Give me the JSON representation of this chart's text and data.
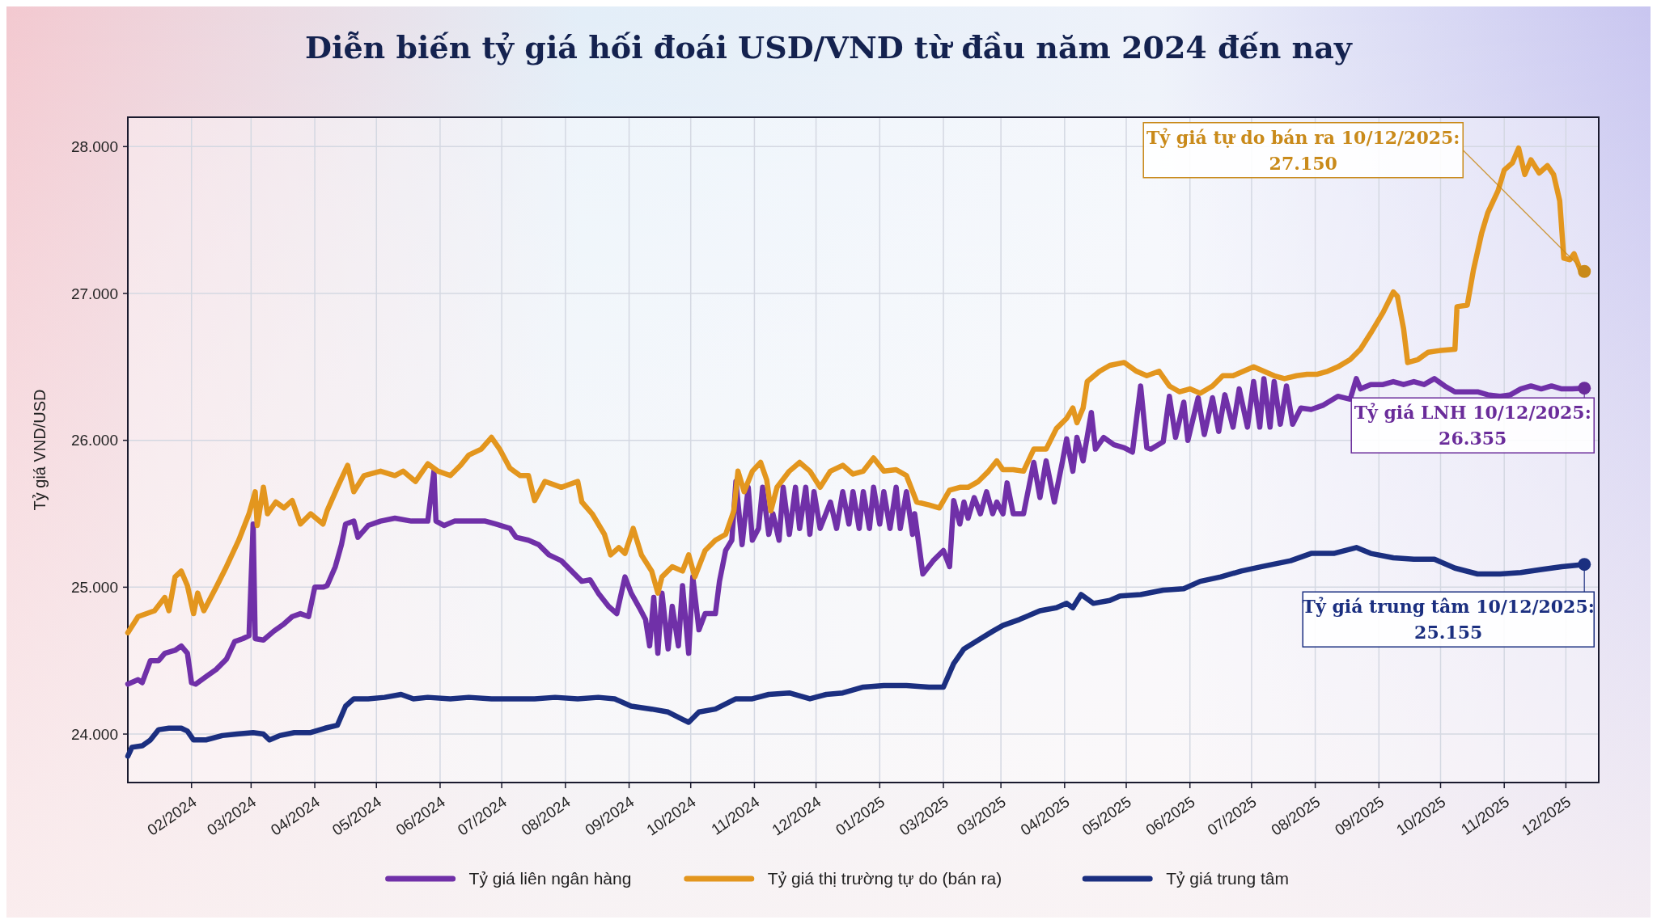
{
  "chart_data": {
    "type": "line",
    "title": "Diễn biến tỷ giá hối đoái USD/VND từ đầu năm 2024 đến nay",
    "ylabel": "Tỷ giá VND/USD",
    "xlim": [
      "2024-01-01",
      "2025-12-17"
    ],
    "xticks": [
      {
        "value": "2024-02-01",
        "label": "02/2024"
      },
      {
        "value": "2024-03-01",
        "label": "03/2024"
      },
      {
        "value": "2024-04-01",
        "label": "04/2024"
      },
      {
        "value": "2024-05-01",
        "label": "05/2024"
      },
      {
        "value": "2024-06-01",
        "label": "06/2024"
      },
      {
        "value": "2024-07-01",
        "label": "07/2024"
      },
      {
        "value": "2024-08-01",
        "label": "08/2024"
      },
      {
        "value": "2024-09-01",
        "label": "09/2024"
      },
      {
        "value": "2024-10-01",
        "label": "10/2024"
      },
      {
        "value": "2024-11-01",
        "label": "11/2024"
      },
      {
        "value": "2024-12-01",
        "label": "12/2024"
      },
      {
        "value": "2025-01-01",
        "label": "01/2025"
      },
      {
        "value": "2025-02-01",
        "label": "03/2025"
      },
      {
        "value": "2025-03-01",
        "label": "03/2025"
      },
      {
        "value": "2025-04-01",
        "label": "04/2025"
      },
      {
        "value": "2025-05-01",
        "label": "05/2025"
      },
      {
        "value": "2025-06-01",
        "label": "06/2025"
      },
      {
        "value": "2025-07-01",
        "label": "07/2025"
      },
      {
        "value": "2025-08-01",
        "label": "08/2025"
      },
      {
        "value": "2025-09-01",
        "label": "09/2025"
      },
      {
        "value": "2025-10-01",
        "label": "10/2025"
      },
      {
        "value": "2025-11-01",
        "label": "11/2025"
      },
      {
        "value": "2025-12-01",
        "label": "12/2025"
      }
    ],
    "ylim": [
      23670,
      28200
    ],
    "yticks": [
      {
        "value": 24000,
        "label": "24.000"
      },
      {
        "value": 25000,
        "label": "25.000"
      },
      {
        "value": 26000,
        "label": "26.000"
      },
      {
        "value": 27000,
        "label": "27.000"
      },
      {
        "value": 28000,
        "label": "28.000"
      }
    ],
    "grid": true,
    "legend": "bottom",
    "series": [
      {
        "name": "Tỷ giá liên ngân hàng",
        "color": "#7030a8",
        "x": [
          "2024-01-01",
          "2024-01-06",
          "2024-01-08",
          "2024-01-12",
          "2024-01-16",
          "2024-01-19",
          "2024-01-24",
          "2024-01-27",
          "2024-01-30",
          "2024-02-01",
          "2024-02-03",
          "2024-02-08",
          "2024-02-13",
          "2024-02-18",
          "2024-02-22",
          "2024-02-26",
          "2024-02-29",
          "2024-03-02",
          "2024-03-03",
          "2024-03-07",
          "2024-03-12",
          "2024-03-17",
          "2024-03-21",
          "2024-03-25",
          "2024-03-29",
          "2024-04-01",
          "2024-04-05",
          "2024-04-07",
          "2024-04-11",
          "2024-04-14",
          "2024-04-16",
          "2024-04-20",
          "2024-04-22",
          "2024-04-27",
          "2024-05-03",
          "2024-05-10",
          "2024-05-18",
          "2024-05-26",
          "2024-05-29",
          "2024-05-30",
          "2024-06-03",
          "2024-06-08",
          "2024-06-15",
          "2024-06-23",
          "2024-06-28",
          "2024-07-05",
          "2024-07-08",
          "2024-07-14",
          "2024-07-19",
          "2024-07-24",
          "2024-07-30",
          "2024-08-04",
          "2024-08-09",
          "2024-08-13",
          "2024-08-17",
          "2024-08-22",
          "2024-08-26",
          "2024-08-30",
          "2024-09-02",
          "2024-09-06",
          "2024-09-09",
          "2024-09-11",
          "2024-09-13",
          "2024-09-15",
          "2024-09-17",
          "2024-09-20",
          "2024-09-22",
          "2024-09-25",
          "2024-09-27",
          "2024-09-30",
          "2024-10-02",
          "2024-10-05",
          "2024-10-08",
          "2024-10-13",
          "2024-10-15",
          "2024-10-18",
          "2024-10-21",
          "2024-10-23",
          "2024-10-26",
          "2024-10-29",
          "2024-10-31",
          "2024-11-03",
          "2024-11-05",
          "2024-11-08",
          "2024-11-10",
          "2024-11-13",
          "2024-11-15",
          "2024-11-18",
          "2024-11-21",
          "2024-11-23",
          "2024-11-26",
          "2024-11-28",
          "2024-11-30",
          "2024-12-03",
          "2024-12-08",
          "2024-12-11",
          "2024-12-14",
          "2024-12-17",
          "2024-12-19",
          "2024-12-22",
          "2024-12-24",
          "2024-12-27",
          "2024-12-29",
          "2025-01-01",
          "2025-01-03",
          "2025-01-06",
          "2025-01-09",
          "2025-01-11",
          "2025-01-14",
          "2025-01-17",
          "2025-01-18",
          "2025-01-22",
          "2025-01-27",
          "2025-02-01",
          "2025-02-04",
          "2025-02-06",
          "2025-02-09",
          "2025-02-11",
          "2025-02-13",
          "2025-02-16",
          "2025-02-19",
          "2025-02-22",
          "2025-02-25",
          "2025-02-27",
          "2025-03-02",
          "2025-03-04",
          "2025-03-07",
          "2025-03-12",
          "2025-03-17",
          "2025-03-20",
          "2025-03-23",
          "2025-03-27",
          "2025-03-31",
          "2025-04-02",
          "2025-04-05",
          "2025-04-07",
          "2025-04-10",
          "2025-04-14",
          "2025-04-16",
          "2025-04-20",
          "2025-04-25",
          "2025-04-30",
          "2025-05-04",
          "2025-05-08",
          "2025-05-11",
          "2025-05-13",
          "2025-05-19",
          "2025-05-22",
          "2025-05-25",
          "2025-05-29",
          "2025-05-31",
          "2025-06-05",
          "2025-06-08",
          "2025-06-12",
          "2025-06-15",
          "2025-06-18",
          "2025-06-22",
          "2025-06-25",
          "2025-06-29",
          "2025-07-02",
          "2025-07-05",
          "2025-07-07",
          "2025-07-10",
          "2025-07-12",
          "2025-07-15",
          "2025-07-18",
          "2025-07-21",
          "2025-07-25",
          "2025-07-30",
          "2025-08-05",
          "2025-08-12",
          "2025-08-18",
          "2025-08-21",
          "2025-08-23",
          "2025-08-28",
          "2025-09-03",
          "2025-09-08",
          "2025-09-13",
          "2025-09-18",
          "2025-09-23",
          "2025-09-28",
          "2025-10-03",
          "2025-10-08",
          "2025-10-14",
          "2025-10-19",
          "2025-10-24",
          "2025-10-30",
          "2025-11-04",
          "2025-11-09",
          "2025-11-14",
          "2025-11-19",
          "2025-11-24",
          "2025-11-29",
          "2025-12-04",
          "2025-12-10"
        ],
        "values": [
          24340,
          24370,
          24350,
          24500,
          24500,
          24550,
          24570,
          24600,
          24550,
          24350,
          24340,
          24390,
          24440,
          24510,
          24630,
          24650,
          24670,
          25430,
          24650,
          24640,
          24700,
          24750,
          24800,
          24820,
          24800,
          25000,
          25000,
          25010,
          25140,
          25290,
          25430,
          25450,
          25340,
          25420,
          25450,
          25470,
          25450,
          25450,
          25790,
          25450,
          25420,
          25450,
          25450,
          25450,
          25430,
          25400,
          25340,
          25320,
          25290,
          25220,
          25180,
          25110,
          25040,
          25050,
          24960,
          24870,
          24820,
          25070,
          24960,
          24860,
          24780,
          24600,
          24930,
          24550,
          24960,
          24580,
          24870,
          24600,
          25010,
          24550,
          25070,
          24710,
          24820,
          24820,
          25040,
          25250,
          25320,
          25720,
          25290,
          25680,
          25320,
          25400,
          25680,
          25360,
          25500,
          25320,
          25680,
          25360,
          25680,
          25400,
          25680,
          25360,
          25650,
          25400,
          25580,
          25400,
          25650,
          25430,
          25650,
          25400,
          25650,
          25400,
          25680,
          25430,
          25650,
          25400,
          25680,
          25400,
          25650,
          25360,
          25500,
          25090,
          25180,
          25250,
          25140,
          25590,
          25430,
          25580,
          25470,
          25610,
          25500,
          25650,
          25500,
          25580,
          25500,
          25710,
          25500,
          25500,
          25850,
          25610,
          25860,
          25580,
          25860,
          26010,
          25790,
          26020,
          25860,
          26190,
          25940,
          26020,
          25970,
          25950,
          25920,
          26370,
          25950,
          25940,
          25990,
          26300,
          26020,
          26260,
          26000,
          26290,
          26040,
          26290,
          26060,
          26310,
          26090,
          26350,
          26090,
          26400,
          26090,
          26420,
          26090,
          26400,
          26110,
          26370,
          26110,
          26220,
          26210,
          26240,
          26300,
          26280,
          26420,
          26350,
          26380,
          26380,
          26400,
          26380,
          26400,
          26380,
          26420,
          26370,
          26330,
          26330,
          26330,
          26310,
          26300,
          26310,
          26350,
          26370,
          26350,
          26370,
          26350,
          26350,
          26355
        ]
      },
      {
        "name": "Tỷ giá thị trường tự do (bán ra)",
        "color": "#e3961e",
        "x": [
          "2024-01-01",
          "2024-01-06",
          "2024-01-14",
          "2024-01-19",
          "2024-01-21",
          "2024-01-24",
          "2024-01-27",
          "2024-01-30",
          "2024-02-02",
          "2024-02-04",
          "2024-02-07",
          "2024-02-13",
          "2024-02-18",
          "2024-02-24",
          "2024-02-29",
          "2024-03-03",
          "2024-03-04",
          "2024-03-07",
          "2024-03-09",
          "2024-03-13",
          "2024-03-17",
          "2024-03-21",
          "2024-03-25",
          "2024-03-30",
          "2024-04-05",
          "2024-04-07",
          "2024-04-12",
          "2024-04-17",
          "2024-04-20",
          "2024-04-25",
          "2024-05-03",
          "2024-05-10",
          "2024-05-14",
          "2024-05-20",
          "2024-05-26",
          "2024-05-31",
          "2024-06-06",
          "2024-06-11",
          "2024-06-15",
          "2024-06-21",
          "2024-06-26",
          "2024-06-30",
          "2024-07-05",
          "2024-07-10",
          "2024-07-14",
          "2024-07-17",
          "2024-07-22",
          "2024-07-30",
          "2024-08-07",
          "2024-08-09",
          "2024-08-14",
          "2024-08-20",
          "2024-08-23",
          "2024-08-27",
          "2024-08-30",
          "2024-09-03",
          "2024-09-07",
          "2024-09-12",
          "2024-09-15",
          "2024-09-17",
          "2024-09-22",
          "2024-09-27",
          "2024-09-30",
          "2024-10-03",
          "2024-10-08",
          "2024-10-13",
          "2024-10-18",
          "2024-10-22",
          "2024-10-24",
          "2024-10-27",
          "2024-10-31",
          "2024-11-04",
          "2024-11-07",
          "2024-11-09",
          "2024-11-12",
          "2024-11-18",
          "2024-11-23",
          "2024-11-28",
          "2024-12-03",
          "2024-12-08",
          "2024-12-14",
          "2024-12-19",
          "2024-12-24",
          "2024-12-29",
          "2025-01-03",
          "2025-01-09",
          "2025-01-14",
          "2025-01-19",
          "2025-01-25",
          "2025-01-30",
          "2025-02-04",
          "2025-02-09",
          "2025-02-13",
          "2025-02-18",
          "2025-02-23",
          "2025-02-27",
          "2025-03-02",
          "2025-03-07",
          "2025-03-12",
          "2025-03-17",
          "2025-03-23",
          "2025-03-28",
          "2025-04-02",
          "2025-04-05",
          "2025-04-07",
          "2025-04-10",
          "2025-04-12",
          "2025-04-18",
          "2025-04-23",
          "2025-04-30",
          "2025-05-06",
          "2025-05-11",
          "2025-05-17",
          "2025-05-22",
          "2025-05-27",
          "2025-06-01",
          "2025-06-06",
          "2025-06-12",
          "2025-06-17",
          "2025-06-22",
          "2025-06-27",
          "2025-07-02",
          "2025-07-07",
          "2025-07-12",
          "2025-07-17",
          "2025-07-23",
          "2025-07-28",
          "2025-08-02",
          "2025-08-07",
          "2025-08-12",
          "2025-08-18",
          "2025-08-23",
          "2025-08-28",
          "2025-09-03",
          "2025-09-08",
          "2025-09-10",
          "2025-09-13",
          "2025-09-15",
          "2025-09-20",
          "2025-09-25",
          "2025-09-30",
          "2025-10-08",
          "2025-10-09",
          "2025-10-14",
          "2025-10-17",
          "2025-10-21",
          "2025-10-24",
          "2025-10-29",
          "2025-11-01",
          "2025-11-05",
          "2025-11-08",
          "2025-11-11",
          "2025-11-14",
          "2025-11-18",
          "2025-11-22",
          "2025-11-25",
          "2025-11-28",
          "2025-11-30",
          "2025-12-03",
          "2025-12-05",
          "2025-12-08",
          "2025-12-10"
        ],
        "values": [
          24690,
          24800,
          24840,
          24930,
          24840,
          25070,
          25110,
          25010,
          24820,
          24960,
          24840,
          25000,
          25140,
          25320,
          25500,
          25650,
          25420,
          25680,
          25500,
          25580,
          25540,
          25590,
          25430,
          25500,
          25430,
          25520,
          25680,
          25830,
          25650,
          25760,
          25790,
          25760,
          25790,
          25720,
          25840,
          25790,
          25760,
          25830,
          25900,
          25940,
          26020,
          25940,
          25810,
          25760,
          25760,
          25590,
          25720,
          25680,
          25720,
          25580,
          25500,
          25360,
          25220,
          25270,
          25230,
          25400,
          25220,
          25110,
          24960,
          25070,
          25140,
          25110,
          25220,
          25070,
          25250,
          25320,
          25360,
          25520,
          25790,
          25650,
          25790,
          25850,
          25730,
          25520,
          25680,
          25790,
          25850,
          25790,
          25680,
          25790,
          25830,
          25770,
          25790,
          25880,
          25790,
          25800,
          25760,
          25580,
          25560,
          25540,
          25660,
          25680,
          25680,
          25720,
          25790,
          25860,
          25800,
          25800,
          25790,
          25940,
          25940,
          26080,
          26150,
          26220,
          26120,
          26220,
          26400,
          26470,
          26510,
          26530,
          26470,
          26440,
          26470,
          26370,
          26330,
          26350,
          26320,
          26370,
          26440,
          26440,
          26470,
          26500,
          26470,
          26440,
          26420,
          26440,
          26450,
          26450,
          26470,
          26500,
          26550,
          26620,
          26730,
          26870,
          27010,
          26980,
          26760,
          26530,
          26550,
          26600,
          26610,
          26620,
          26910,
          26920,
          27160,
          27410,
          27550,
          27700,
          27840,
          27890,
          27990,
          27810,
          27910,
          27820,
          27870,
          27810,
          27630,
          27240,
          27230,
          27270,
          27160,
          27150
        ]
      },
      {
        "name": "Tỷ giá trung tâm",
        "color": "#1b2f80",
        "x": [
          "2024-01-01",
          "2024-01-03",
          "2024-01-08",
          "2024-01-12",
          "2024-01-16",
          "2024-01-21",
          "2024-01-27",
          "2024-01-30",
          "2024-02-02",
          "2024-02-08",
          "2024-02-16",
          "2024-02-23",
          "2024-03-02",
          "2024-03-07",
          "2024-03-10",
          "2024-03-15",
          "2024-03-22",
          "2024-03-30",
          "2024-04-06",
          "2024-04-12",
          "2024-04-16",
          "2024-04-20",
          "2024-04-27",
          "2024-05-05",
          "2024-05-13",
          "2024-05-19",
          "2024-05-26",
          "2024-06-06",
          "2024-06-15",
          "2024-06-26",
          "2024-07-06",
          "2024-07-17",
          "2024-07-27",
          "2024-08-07",
          "2024-08-17",
          "2024-08-25",
          "2024-09-02",
          "2024-09-12",
          "2024-09-20",
          "2024-09-27",
          "2024-09-30",
          "2024-10-05",
          "2024-10-13",
          "2024-10-23",
          "2024-10-31",
          "2024-11-08",
          "2024-11-18",
          "2024-11-28",
          "2024-12-06",
          "2024-12-14",
          "2024-12-24",
          "2025-01-03",
          "2025-01-14",
          "2025-01-25",
          "2025-02-01",
          "2025-02-06",
          "2025-02-11",
          "2025-02-18",
          "2025-02-25",
          "2025-03-02",
          "2025-03-10",
          "2025-03-20",
          "2025-03-28",
          "2025-04-02",
          "2025-04-05",
          "2025-04-09",
          "2025-04-15",
          "2025-04-23",
          "2025-04-28",
          "2025-05-08",
          "2025-05-19",
          "2025-05-29",
          "2025-06-06",
          "2025-06-16",
          "2025-06-26",
          "2025-07-06",
          "2025-07-20",
          "2025-07-30",
          "2025-08-10",
          "2025-08-21",
          "2025-08-28",
          "2025-09-08",
          "2025-09-18",
          "2025-09-28",
          "2025-10-08",
          "2025-10-19",
          "2025-10-30",
          "2025-11-09",
          "2025-11-19",
          "2025-11-29",
          "2025-12-10"
        ],
        "values": [
          23850,
          23910,
          23920,
          23960,
          24030,
          24040,
          24040,
          24020,
          23960,
          23960,
          23990,
          24000,
          24010,
          24000,
          23960,
          23990,
          24010,
          24010,
          24040,
          24060,
          24190,
          24240,
          24240,
          24250,
          24270,
          24240,
          24250,
          24240,
          24250,
          24240,
          24240,
          24240,
          24250,
          24240,
          24250,
          24240,
          24190,
          24170,
          24150,
          24100,
          24080,
          24150,
          24170,
          24240,
          24240,
          24270,
          24280,
          24240,
          24270,
          24280,
          24320,
          24330,
          24330,
          24320,
          24320,
          24480,
          24580,
          24640,
          24700,
          24740,
          24780,
          24840,
          24860,
          24890,
          24860,
          24950,
          24890,
          24910,
          24940,
          24950,
          24980,
          24990,
          25040,
          25070,
          25110,
          25140,
          25180,
          25230,
          25230,
          25270,
          25230,
          25200,
          25190,
          25190,
          25130,
          25090,
          25090,
          25100,
          25120,
          25140,
          25155
        ]
      }
    ],
    "annotations": [
      {
        "text": "Tỷ giá tự do bán ra 10/12/2025:\n27.150",
        "x": "2025-12-10",
        "y": 27150
      },
      {
        "text": "Tỷ giá LNH 10/12/2025:\n26.355",
        "x": "2025-12-10",
        "y": 26355
      },
      {
        "text": "Tỷ giá trung tâm 10/12/2025:\n25.155",
        "x": "2025-12-10",
        "y": 25155
      }
    ]
  }
}
